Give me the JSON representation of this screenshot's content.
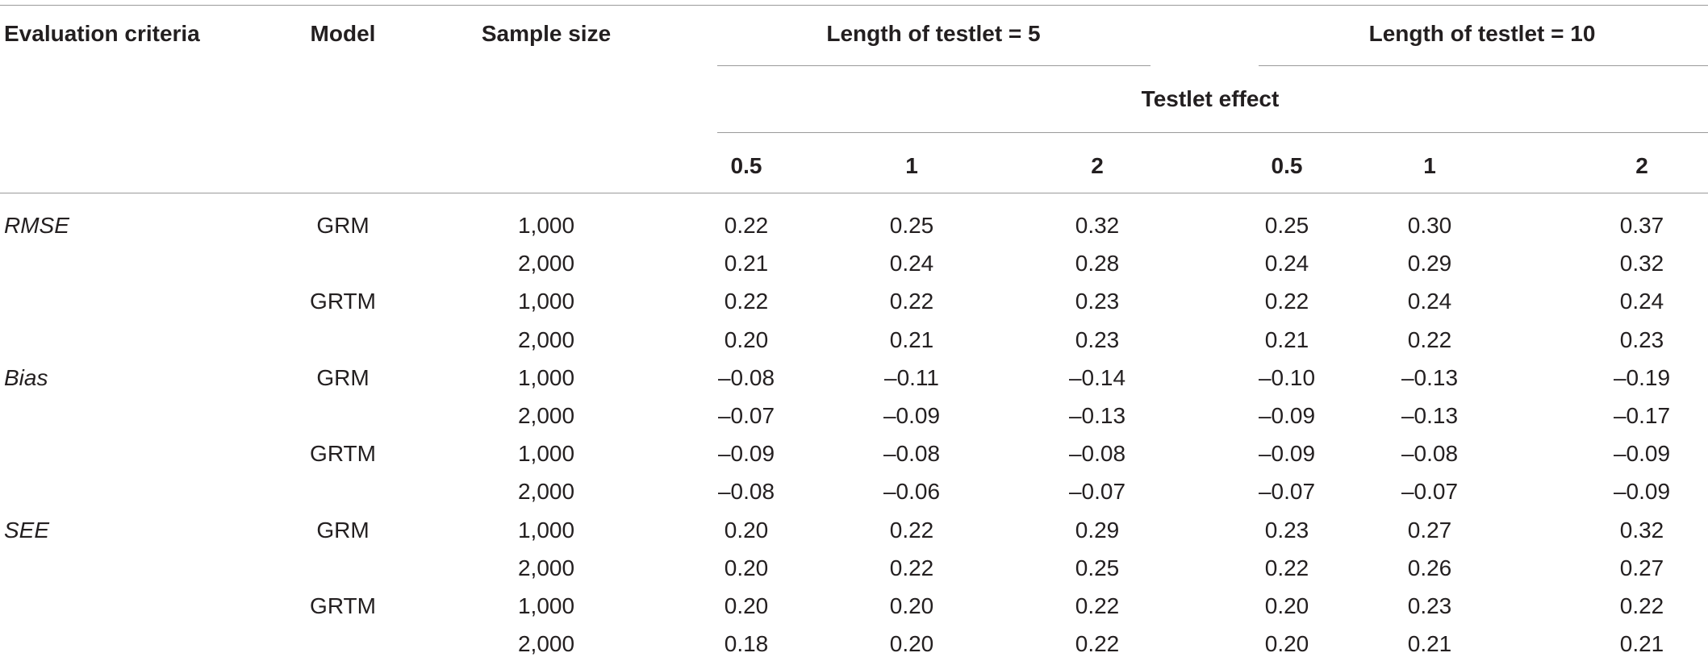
{
  "header": {
    "evaluation_criteria": "Evaluation criteria",
    "model": "Model",
    "sample_size": "Sample size",
    "group_5": "Length of testlet = 5",
    "group_10": "Length of testlet = 10",
    "testlet_effect": "Testlet effect",
    "effects": [
      "0.5",
      "1",
      "2",
      "0.5",
      "1",
      "2"
    ]
  },
  "rows": [
    {
      "criteria": "RMSE",
      "model": "GRM",
      "sample": "1,000",
      "values": [
        "0.22",
        "0.25",
        "0.32",
        "0.25",
        "0.30",
        "0.37"
      ]
    },
    {
      "criteria": "",
      "model": "",
      "sample": "2,000",
      "values": [
        "0.21",
        "0.24",
        "0.28",
        "0.24",
        "0.29",
        "0.32"
      ]
    },
    {
      "criteria": "",
      "model": "GRTM",
      "sample": "1,000",
      "values": [
        "0.22",
        "0.22",
        "0.23",
        "0.22",
        "0.24",
        "0.24"
      ]
    },
    {
      "criteria": "",
      "model": "",
      "sample": "2,000",
      "values": [
        "0.20",
        "0.21",
        "0.23",
        "0.21",
        "0.22",
        "0.23"
      ]
    },
    {
      "criteria": "Bias",
      "model": "GRM",
      "sample": "1,000",
      "values": [
        "–0.08",
        "–0.11",
        "–0.14",
        "–0.10",
        "–0.13",
        "–0.19"
      ]
    },
    {
      "criteria": "",
      "model": "",
      "sample": "2,000",
      "values": [
        "–0.07",
        "–0.09",
        "–0.13",
        "–0.09",
        "–0.13",
        "–0.17"
      ]
    },
    {
      "criteria": "",
      "model": "GRTM",
      "sample": "1,000",
      "values": [
        "–0.09",
        "–0.08",
        "–0.08",
        "–0.09",
        "–0.08",
        "–0.09"
      ]
    },
    {
      "criteria": "",
      "model": "",
      "sample": "2,000",
      "values": [
        "–0.08",
        "–0.06",
        "–0.07",
        "–0.07",
        "–0.07",
        "–0.09"
      ]
    },
    {
      "criteria": "SEE",
      "model": "GRM",
      "sample": "1,000",
      "values": [
        "0.20",
        "0.22",
        "0.29",
        "0.23",
        "0.27",
        "0.32"
      ]
    },
    {
      "criteria": "",
      "model": "",
      "sample": "2,000",
      "values": [
        "0.20",
        "0.22",
        "0.25",
        "0.22",
        "0.26",
        "0.27"
      ]
    },
    {
      "criteria": "",
      "model": "GRTM",
      "sample": "1,000",
      "values": [
        "0.20",
        "0.20",
        "0.22",
        "0.20",
        "0.23",
        "0.22"
      ]
    },
    {
      "criteria": "",
      "model": "",
      "sample": "2,000",
      "values": [
        "0.18",
        "0.20",
        "0.22",
        "0.20",
        "0.21",
        "0.21"
      ]
    }
  ]
}
